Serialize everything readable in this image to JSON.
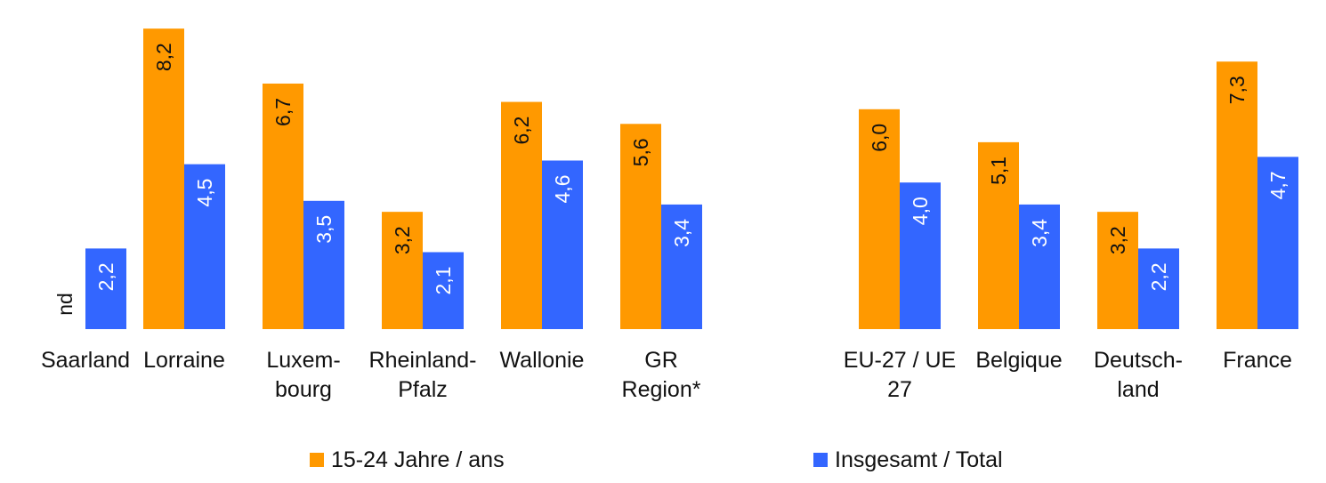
{
  "chart_data": {
    "type": "bar",
    "orientation": "vertical",
    "title": "",
    "xlabel": "",
    "ylabel": "",
    "grid": false,
    "legend_position": "bottom",
    "ylim": [
      0,
      9
    ],
    "groups": [
      {
        "categories": [
          [
            "Saarland"
          ],
          [
            "Lorraine"
          ],
          [
            "Luxem-",
            "bourg"
          ],
          [
            "Rheinland-",
            "Pfalz"
          ],
          [
            "Wallonie"
          ],
          [
            "GR",
            "Region*"
          ]
        ],
        "series": [
          {
            "name": "15-24 Jahre / ans",
            "values": [
              null,
              8.2,
              6.7,
              3.2,
              6.2,
              5.6
            ],
            "labels": [
              "nd",
              "8,2",
              "6,7",
              "3,2",
              "6,2",
              "5,6"
            ]
          },
          {
            "name": "Insgesamt / Total",
            "values": [
              2.2,
              4.5,
              3.5,
              2.1,
              4.6,
              3.4
            ],
            "labels": [
              "2,2",
              "4,5",
              "3,5",
              "2,1",
              "4,6",
              "3,4"
            ]
          }
        ]
      },
      {
        "categories": [
          [
            "EU-27 / UE",
            "27"
          ],
          [
            "Belgique"
          ],
          [
            "Deutsch-",
            "land"
          ],
          [
            "France"
          ]
        ],
        "series": [
          {
            "name": "15-24 Jahre / ans",
            "values": [
              6.0,
              5.1,
              3.2,
              7.3
            ],
            "labels": [
              "6,0",
              "5,1",
              "3,2",
              "7,3"
            ]
          },
          {
            "name": "Insgesamt / Total",
            "values": [
              4.0,
              3.4,
              2.2,
              4.7
            ],
            "labels": [
              "4,0",
              "3,4",
              "2,2",
              "4,7"
            ]
          }
        ]
      }
    ],
    "legend": [
      {
        "name": "15-24 Jahre / ans",
        "color": "#FF9900"
      },
      {
        "name": "Insgesamt / Total",
        "color": "#3366FF"
      }
    ],
    "colors": {
      "youth": "#FF9900",
      "total": "#3366FF",
      "label_on_orange": "#111111",
      "label_on_blue": "#ffffff",
      "label_missing": "#111111"
    }
  }
}
